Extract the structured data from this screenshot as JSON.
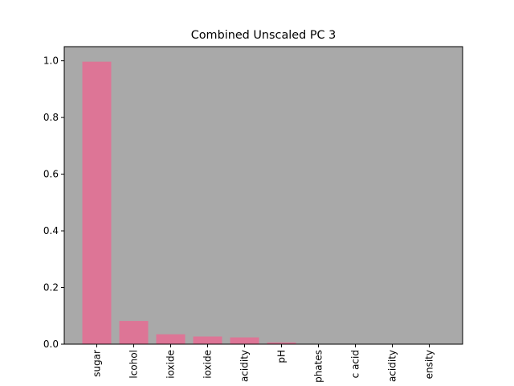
{
  "chart_data": {
    "type": "bar",
    "title": "Combined Unscaled PC 3",
    "xlabel": "",
    "ylabel": "",
    "categories": [
      "sugar",
      "lcohol",
      "ioxide",
      "ioxide",
      "acidity",
      "pH",
      "phates",
      "c acid",
      "acidity",
      "ensity"
    ],
    "values": [
      0.997,
      0.082,
      0.035,
      0.027,
      0.024,
      0.006,
      0.001,
      0.0005,
      0.0003,
      0.0002
    ],
    "ylim": [
      0,
      1.05
    ],
    "y_ticks": [
      "0.0",
      "0.2",
      "0.4",
      "0.6",
      "0.8",
      "1.0"
    ],
    "y_tick_values": [
      0.0,
      0.2,
      0.4,
      0.6,
      0.8,
      1.0
    ],
    "grid": false,
    "legend": "none",
    "colors": {
      "bar": "#dd7596",
      "plot_background": "#a9a9a9",
      "axis": "#000000"
    }
  }
}
